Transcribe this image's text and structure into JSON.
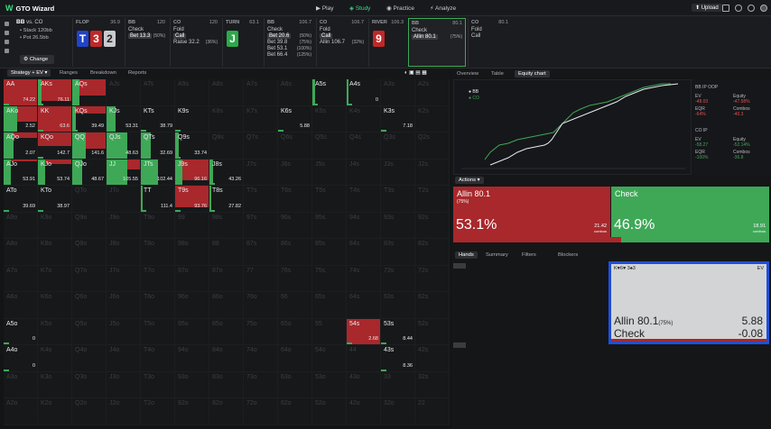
{
  "topbar": {
    "logo": "GTO Wizard",
    "nav": [
      "Play",
      "Study",
      "Practice",
      "Analyze"
    ],
    "upload": "Upload"
  },
  "position": {
    "label": "BB",
    "vs": "vs. CO",
    "stack": "Stack 120bb",
    "pot": "Pot 26.5bb",
    "change": "Change"
  },
  "streets": [
    {
      "name": "FLOP",
      "value": "36.9",
      "cards": [
        "T",
        "3",
        "2"
      ],
      "colors": [
        "#2044c8",
        "#c02828",
        "#c9cbce"
      ]
    },
    {
      "name": "BB",
      "value": "120",
      "options": [
        "Check",
        "Bet 13.3"
      ],
      "pcts": [
        "",
        "(50%)"
      ],
      "selected": 1
    },
    {
      "name": "CO",
      "value": "120",
      "options": [
        "Fold",
        "Call",
        "Raise 32.2"
      ],
      "pcts": [
        "",
        "",
        "(36%)"
      ],
      "selected": 1
    },
    {
      "name": "TURN",
      "value": "63.1",
      "cards": [
        "J"
      ],
      "colors": [
        "#2ea84a"
      ]
    },
    {
      "name": "BB",
      "value": "106.7",
      "options": [
        "Check",
        "Bet 20.6",
        "Bet 39.8",
        "Bet 53.1",
        "Bet 66.4"
      ],
      "pcts": [
        "",
        "(50%)",
        "(75%)",
        "(100%)",
        "(125%)"
      ],
      "selected": 1
    },
    {
      "name": "CO",
      "value": "106.7",
      "options": [
        "Fold",
        "Call",
        "Allin 106.7"
      ],
      "pcts": [
        "",
        "",
        "(32%)"
      ],
      "selected": 1
    },
    {
      "name": "RIVER",
      "value": "106.3",
      "cards": [
        "9"
      ],
      "colors": [
        "#c02828"
      ]
    },
    {
      "name": "BB",
      "value": "80.1",
      "options": [
        "Check",
        "Allin 80.1"
      ],
      "pcts": [
        "",
        "(75%)"
      ],
      "selected": 1
    },
    {
      "name": "CO",
      "value": "80.1",
      "options": [
        "Fold",
        "Call"
      ],
      "pcts": [
        "",
        ""
      ],
      "selected": -1
    }
  ],
  "left_tabs": [
    "Strategy + EV",
    "Ranges",
    "Breakdown",
    "Reports"
  ],
  "ranks": [
    "A",
    "K",
    "Q",
    "J",
    "T",
    "9",
    "8",
    "7",
    "6",
    "5",
    "4",
    "3",
    "2"
  ],
  "cells": {
    "0,0": {
      "red": 1.0,
      "green": 0.0,
      "ev": "74.22"
    },
    "0,1": {
      "red": 0.8,
      "green": 0.1,
      "ev": "76.11"
    },
    "0,2": {
      "red": 0.6,
      "green": 0.2,
      "ev": ""
    },
    "0,9": {
      "red": 0.0,
      "green": 0.08,
      "ev": ""
    },
    "0,10": {
      "red": 0.0,
      "green": 0.05,
      "ev": "0"
    },
    "1,0": {
      "red": 0.6,
      "green": 0.4,
      "ev": "2.52"
    },
    "1,1": {
      "red": 1.0,
      "green": 0.0,
      "ev": "63.6"
    },
    "1,2": {
      "red": 0.3,
      "green": 0.1,
      "ev": "39.49"
    },
    "1,3": {
      "red": 0.0,
      "green": 0.25,
      "ev": "53.31"
    },
    "1,4": {
      "red": 0.0,
      "green": 0.0,
      "ev": "38.79"
    },
    "1,5": {
      "red": 0.0,
      "green": 0.0,
      "ev": ""
    },
    "1,11": {
      "red": 0.0,
      "green": 0.0,
      "ev": "7.18"
    },
    "2,0": {
      "red": 0.2,
      "green": 0.3,
      "ev": "2.07"
    },
    "2,1": {
      "red": 0.5,
      "green": 0.0,
      "ev": "142.7"
    },
    "2,2": {
      "red": 0.6,
      "green": 0.4,
      "ev": "141.6"
    },
    "2,3": {
      "red": 0.0,
      "green": 0.6,
      "ev": "48.63"
    },
    "2,4": {
      "red": 0.0,
      "green": 0.3,
      "ev": "32.69"
    },
    "2,5": {
      "red": 0.0,
      "green": 0.1,
      "ev": "33.74"
    },
    "3,0": {
      "red": 0.1,
      "green": 0.2,
      "ev": "53.91"
    },
    "3,1": {
      "red": 0.2,
      "green": 0.2,
      "ev": "53.74"
    },
    "3,2": {
      "red": 0.0,
      "green": 0.3,
      "ev": "48.67"
    },
    "3,3": {
      "red": 0.4,
      "green": 0.6,
      "ev": "105.55"
    },
    "3,4": {
      "red": 0.0,
      "green": 0.5,
      "ev": "102.44"
    },
    "3,5": {
      "red": 0.8,
      "green": 0.2,
      "ev": "96.16"
    },
    "3,6": {
      "red": 0.0,
      "green": 0.1,
      "ev": "43.26"
    },
    "4,0": {
      "red": 0.0,
      "green": 0.0,
      "ev": "39.69"
    },
    "4,1": {
      "red": 0.0,
      "green": 0.0,
      "ev": "38.97"
    },
    "4,4": {
      "red": 0.0,
      "green": 0.05,
      "ev": "111.4"
    },
    "4,5": {
      "red": 0.8,
      "green": 0.0,
      "ev": "93.76"
    },
    "4,6": {
      "red": 0.0,
      "green": 0.05,
      "ev": "27.82"
    },
    "9,0": {
      "red": 0.0,
      "green": 0.0,
      "ev": "0"
    },
    "9,10": {
      "red": 1.0,
      "green": 0.0,
      "ev": "2.68"
    },
    "9,11": {
      "red": 0.0,
      "green": 0.0,
      "ev": "8.44"
    },
    "10,0": {
      "red": 0.0,
      "green": 0.0,
      "ev": "0"
    },
    "10,11": {
      "red": 0.0,
      "green": 0.0,
      "ev": "8.36"
    },
    "1,8": {
      "red": 0.0,
      "green": 0.0,
      "ev": "5.88"
    }
  },
  "right_tabs": [
    "Overview",
    "Table",
    "Equity chart"
  ],
  "equity_legend": [
    "BB",
    "CO"
  ],
  "equity_side": {
    "bb_label": "BB IP OOP",
    "ev": "EV",
    "ev_val": "-48.03",
    "equity": "Equity",
    "equity_val": "-47.58%",
    "eqr": "EQR",
    "eqr_val": "-64%",
    "combos": "Combos",
    "combos_val": "-40.3",
    "co_label": "CO IP",
    "co_ev_val": "-58.27",
    "co_eq_val": "-52.14%",
    "co_eqr_val": "-100%",
    "co_combos_val": "-36.8"
  },
  "actions_label": "Actions",
  "action_boxes": [
    {
      "name": "Allin 80.1",
      "pct": "(75%)",
      "freq": "53.1%",
      "ev": "21.42",
      "combos": "combos",
      "color": "#a8282c"
    },
    {
      "name": "Check",
      "pct": "",
      "freq": "46.9%",
      "ev": "18.91",
      "combos": "combos",
      "color": "#3ea857"
    }
  ],
  "hand_tabs": [
    "Hands",
    "Summary",
    "Filters",
    "Blockers"
  ],
  "combo_card": {
    "hand": "K♥6♥ 3♠3",
    "ev_label": "EV",
    "rows": [
      {
        "name": "Allin 80.1",
        "pct": "(75%)",
        "val": "5.88"
      },
      {
        "name": "Check",
        "pct": "",
        "val": "-0.08"
      }
    ]
  }
}
